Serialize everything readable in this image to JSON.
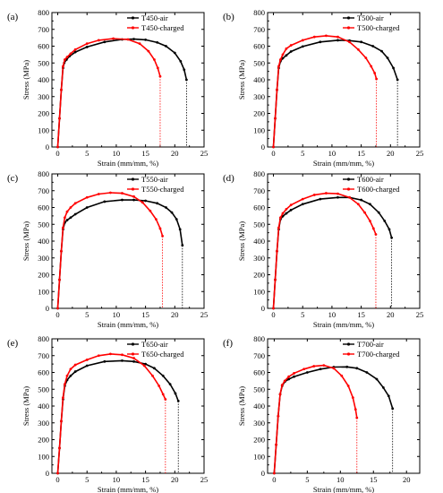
{
  "colors": {
    "air": "#000000",
    "charged": "#ff0000",
    "axis": "#000000"
  },
  "chart_data": [
    {
      "type": "line",
      "panel_label": "(a)",
      "xlabel": "Strain (mm/mm, %)",
      "ylabel": "Stress (MPa)",
      "xlim": [
        -1,
        25
      ],
      "ylim": [
        0,
        800
      ],
      "xticks": [
        0,
        5,
        10,
        15,
        20,
        25
      ],
      "yticks": [
        0,
        100,
        200,
        300,
        400,
        500,
        600,
        700,
        800
      ],
      "legend_position": "top-right",
      "fracture_lines": true,
      "series": [
        {
          "name": "T450-air",
          "color": "#000000",
          "x": [
            0,
            0.3,
            0.6,
            0.9,
            1.1,
            1.5,
            2,
            3,
            5,
            8,
            11,
            13,
            15,
            17,
            18.5,
            20,
            21,
            21.6,
            22
          ],
          "y": [
            0,
            170,
            340,
            470,
            500,
            520,
            540,
            565,
            595,
            625,
            640,
            642,
            638,
            622,
            600,
            560,
            510,
            460,
            400
          ]
        },
        {
          "name": "T450-charged",
          "color": "#ff0000",
          "x": [
            0,
            0.3,
            0.6,
            0.9,
            1.2,
            1.6,
            2.2,
            3,
            5,
            7,
            9.5,
            12,
            14,
            15.5,
            16.5,
            17.1,
            17.5
          ],
          "y": [
            0,
            170,
            340,
            480,
            520,
            535,
            555,
            580,
            615,
            635,
            645,
            640,
            615,
            570,
            520,
            470,
            420
          ]
        }
      ]
    },
    {
      "type": "line",
      "panel_label": "(b)",
      "xlabel": "Strain (mm/mm, %)",
      "ylabel": "Stress (MPa)",
      "xlim": [
        -1,
        25
      ],
      "ylim": [
        0,
        800
      ],
      "xticks": [
        0,
        5,
        10,
        15,
        20,
        25
      ],
      "yticks": [
        0,
        100,
        200,
        300,
        400,
        500,
        600,
        700,
        800
      ],
      "legend_position": "top-right",
      "fracture_lines": true,
      "series": [
        {
          "name": "T500-air",
          "color": "#000000",
          "x": [
            0,
            0.3,
            0.6,
            0.9,
            1.2,
            1.6,
            2.2,
            3,
            5,
            8,
            11,
            13,
            15,
            17,
            18.5,
            19.5,
            20.5,
            21.2
          ],
          "y": [
            0,
            170,
            340,
            470,
            510,
            528,
            545,
            568,
            598,
            625,
            635,
            633,
            625,
            600,
            570,
            530,
            470,
            400
          ]
        },
        {
          "name": "T500-charged",
          "color": "#ff0000",
          "x": [
            0,
            0.3,
            0.6,
            0.9,
            1.2,
            1.6,
            2.2,
            3,
            5,
            7,
            9,
            11,
            13,
            14.5,
            15.8,
            16.7,
            17.3,
            17.6
          ],
          "y": [
            0,
            170,
            340,
            480,
            520,
            550,
            585,
            605,
            635,
            655,
            662,
            655,
            625,
            580,
            530,
            480,
            440,
            405
          ]
        }
      ]
    },
    {
      "type": "line",
      "panel_label": "(c)",
      "xlabel": "Strain (mm/mm, %)",
      "ylabel": "Stress (MPa)",
      "xlim": [
        -1,
        25
      ],
      "ylim": [
        0,
        800
      ],
      "xticks": [
        0,
        5,
        10,
        15,
        20,
        25
      ],
      "yticks": [
        0,
        100,
        200,
        300,
        400,
        500,
        600,
        700,
        800
      ],
      "legend_position": "top-right",
      "fracture_lines": true,
      "series": [
        {
          "name": "T550-air",
          "color": "#000000",
          "x": [
            0,
            0.3,
            0.6,
            0.9,
            1.2,
            1.6,
            2.2,
            3,
            5,
            8,
            11,
            13,
            15,
            17,
            18.5,
            19.5,
            20.3,
            20.9,
            21.3
          ],
          "y": [
            0,
            170,
            340,
            470,
            510,
            525,
            540,
            560,
            600,
            635,
            645,
            645,
            640,
            625,
            600,
            570,
            530,
            470,
            375
          ]
        },
        {
          "name": "T550-charged",
          "color": "#ff0000",
          "x": [
            0,
            0.3,
            0.6,
            0.9,
            1.2,
            1.6,
            2.2,
            3,
            5,
            7,
            9,
            11,
            13,
            14.5,
            15.8,
            16.8,
            17.5,
            17.9
          ],
          "y": [
            0,
            170,
            340,
            480,
            540,
            575,
            600,
            625,
            660,
            680,
            688,
            685,
            665,
            630,
            580,
            530,
            475,
            430
          ]
        }
      ]
    },
    {
      "type": "line",
      "panel_label": "(d)",
      "xlabel": "Strain (mm/mm, %)",
      "ylabel": "Stress (MPa)",
      "xlim": [
        -1,
        25
      ],
      "ylim": [
        0,
        800
      ],
      "xticks": [
        0,
        5,
        10,
        15,
        20,
        25
      ],
      "yticks": [
        0,
        100,
        200,
        300,
        400,
        500,
        600,
        700,
        800
      ],
      "legend_position": "top-right",
      "fracture_lines": true,
      "series": [
        {
          "name": "T600-air",
          "color": "#000000",
          "x": [
            0,
            0.3,
            0.6,
            0.9,
            1.2,
            1.6,
            2.2,
            3,
            5,
            8,
            11,
            13,
            15,
            16.5,
            18,
            19,
            19.8,
            20.2
          ],
          "y": [
            0,
            170,
            340,
            470,
            530,
            548,
            565,
            585,
            620,
            650,
            660,
            660,
            645,
            620,
            570,
            520,
            470,
            420
          ]
        },
        {
          "name": "T600-charged",
          "color": "#ff0000",
          "x": [
            0,
            0.3,
            0.6,
            0.9,
            1.2,
            1.6,
            2.2,
            3,
            5,
            7,
            9,
            11,
            13,
            14.5,
            15.6,
            16.5,
            17.1,
            17.5
          ],
          "y": [
            0,
            170,
            340,
            480,
            540,
            565,
            590,
            615,
            650,
            675,
            685,
            682,
            660,
            620,
            570,
            520,
            475,
            440
          ]
        }
      ]
    },
    {
      "type": "line",
      "panel_label": "(e)",
      "xlabel": "Strain (mm/mm, %)",
      "ylabel": "Stress (MPa)",
      "xlim": [
        -1,
        25
      ],
      "ylim": [
        0,
        800
      ],
      "xticks": [
        0,
        5,
        10,
        15,
        20,
        25
      ],
      "yticks": [
        0,
        100,
        200,
        300,
        400,
        500,
        600,
        700,
        800
      ],
      "legend_position": "top-right",
      "fracture_lines": true,
      "series": [
        {
          "name": "T650-air",
          "color": "#000000",
          "x": [
            0,
            0.3,
            0.6,
            0.9,
            1.2,
            1.6,
            2.2,
            3,
            5,
            8,
            11,
            13,
            15,
            16.5,
            18,
            19.2,
            20.1,
            20.6
          ],
          "y": [
            0,
            150,
            310,
            440,
            520,
            555,
            580,
            605,
            640,
            665,
            670,
            665,
            650,
            625,
            580,
            530,
            475,
            430
          ]
        },
        {
          "name": "T650-charged",
          "color": "#ff0000",
          "x": [
            0,
            0.3,
            0.6,
            0.9,
            1.2,
            1.6,
            2.2,
            3,
            5,
            7,
            9,
            11,
            13,
            14.8,
            16.2,
            17.3,
            18,
            18.4
          ],
          "y": [
            0,
            150,
            310,
            450,
            530,
            580,
            620,
            645,
            675,
            700,
            710,
            705,
            685,
            640,
            580,
            520,
            470,
            440
          ]
        }
      ]
    },
    {
      "type": "line",
      "panel_label": "(f)",
      "xlabel": "Strain (mm/mm, %)",
      "ylabel": "Stress (MPa)",
      "xlim": [
        -1,
        22
      ],
      "ylim": [
        0,
        800
      ],
      "xticks": [
        0,
        5,
        10,
        15,
        20
      ],
      "yticks": [
        0,
        100,
        200,
        300,
        400,
        500,
        600,
        700,
        800
      ],
      "legend_position": "top-right",
      "fracture_lines": true,
      "series": [
        {
          "name": "T700-air",
          "color": "#000000",
          "x": [
            0,
            0.3,
            0.6,
            0.9,
            1.2,
            1.6,
            2.2,
            3,
            5,
            7,
            9,
            11,
            12.5,
            14,
            15.5,
            16.5,
            17.3,
            17.9
          ],
          "y": [
            0,
            170,
            340,
            470,
            520,
            545,
            560,
            575,
            600,
            620,
            632,
            633,
            625,
            600,
            560,
            510,
            460,
            385
          ]
        },
        {
          "name": "T700-charged",
          "color": "#ff0000",
          "x": [
            0,
            0.3,
            0.6,
            0.9,
            1.2,
            1.6,
            2.2,
            3,
            4.5,
            6,
            7.5,
            9,
            10.2,
            11.2,
            11.9,
            12.3,
            12.5
          ],
          "y": [
            0,
            170,
            340,
            470,
            525,
            550,
            575,
            595,
            620,
            637,
            642,
            625,
            580,
            520,
            450,
            380,
            330
          ]
        }
      ]
    }
  ]
}
